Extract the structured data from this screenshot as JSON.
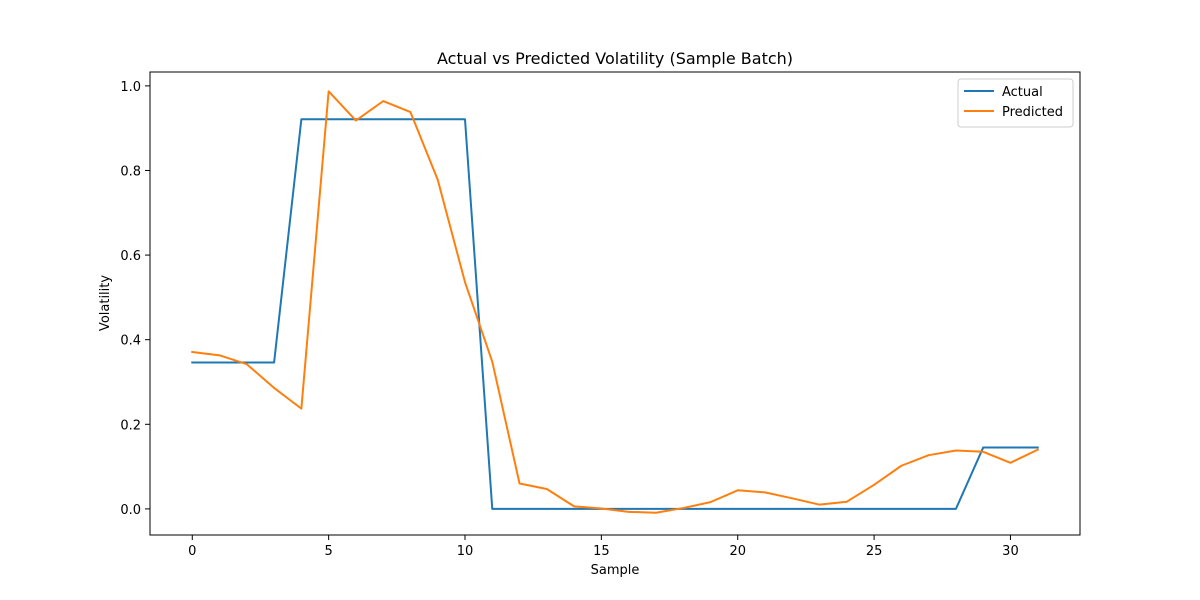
{
  "chart_data": {
    "type": "line",
    "title": "Actual vs Predicted Volatility (Sample Batch)",
    "xlabel": "Sample",
    "ylabel": "Volatility",
    "xlim": [
      -1.55,
      32.55
    ],
    "ylim": [
      -0.0617,
      1.0328
    ],
    "x_ticks": [
      0,
      5,
      10,
      15,
      20,
      25,
      30
    ],
    "x_tick_labels": [
      "0",
      "5",
      "10",
      "15",
      "20",
      "25",
      "30"
    ],
    "y_ticks": [
      0.0,
      0.2,
      0.4,
      0.6,
      0.8,
      1.0
    ],
    "y_tick_labels": [
      "0.0",
      "0.2",
      "0.4",
      "0.6",
      "0.8",
      "1.0"
    ],
    "grid": false,
    "legend_position": "top-right",
    "x": [
      0,
      1,
      2,
      3,
      4,
      5,
      6,
      7,
      8,
      9,
      10,
      11,
      12,
      13,
      14,
      15,
      16,
      17,
      18,
      19,
      20,
      21,
      22,
      23,
      24,
      25,
      26,
      27,
      28,
      29,
      30,
      31
    ],
    "series": [
      {
        "name": "Actual",
        "color": "#1f77b4",
        "values": [
          0.346,
          0.346,
          0.346,
          0.346,
          0.921,
          0.921,
          0.921,
          0.921,
          0.921,
          0.921,
          0.921,
          0.0,
          0.0,
          0.0,
          0.0,
          0.0,
          0.0,
          0.0,
          0.0,
          0.0,
          0.0,
          0.0,
          0.0,
          0.0,
          0.0,
          0.0,
          0.0,
          0.0,
          0.0,
          0.145,
          0.145,
          0.145
        ]
      },
      {
        "name": "Predicted",
        "color": "#ff7f0e",
        "values": [
          0.371,
          0.363,
          0.342,
          0.286,
          0.237,
          0.987,
          0.918,
          0.964,
          0.938,
          0.778,
          0.536,
          0.348,
          0.06,
          0.047,
          0.006,
          0.001,
          -0.007,
          -0.009,
          0.002,
          0.016,
          0.044,
          0.039,
          0.025,
          0.01,
          0.017,
          0.057,
          0.102,
          0.127,
          0.138,
          0.135,
          0.109,
          0.14
        ]
      }
    ]
  }
}
